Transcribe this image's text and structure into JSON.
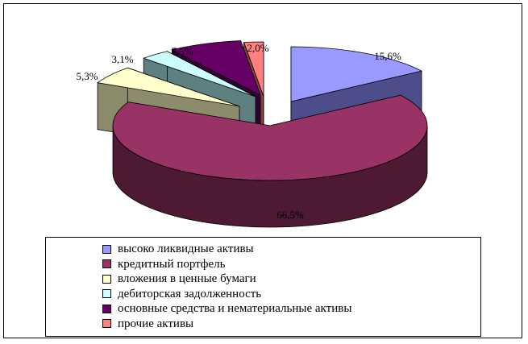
{
  "chart_data": {
    "type": "pie",
    "style": "3d-exploded",
    "legend_position": "bottom",
    "series": [
      {
        "name": "высоко ликвидные активы",
        "value": 15.6,
        "label": "15,6%",
        "color": "#9999ff",
        "side_color": "#4d4d8c"
      },
      {
        "name": "кредитный портфель",
        "value": 66.5,
        "label": "66,5%",
        "color": "#993366",
        "side_color": "#4d1933"
      },
      {
        "name": "вложения в ценные бумаги",
        "value": 5.3,
        "label": "5,3%",
        "color": "#ffffcc",
        "side_color": "#8c8c6c"
      },
      {
        "name": "дебиторская задолженность",
        "value": 3.1,
        "label": "3,1%",
        "color": "#ccffff",
        "side_color": "#5f8080"
      },
      {
        "name": "основные средства и нематериальные активы",
        "value": 7.5,
        "label": "7,5%",
        "color": "#660066",
        "side_color": "#330033"
      },
      {
        "name": "прочие активы",
        "value": 2.0,
        "label": "2,0%",
        "color": "#ff8080",
        "side_color": "#8c4040"
      }
    ]
  }
}
